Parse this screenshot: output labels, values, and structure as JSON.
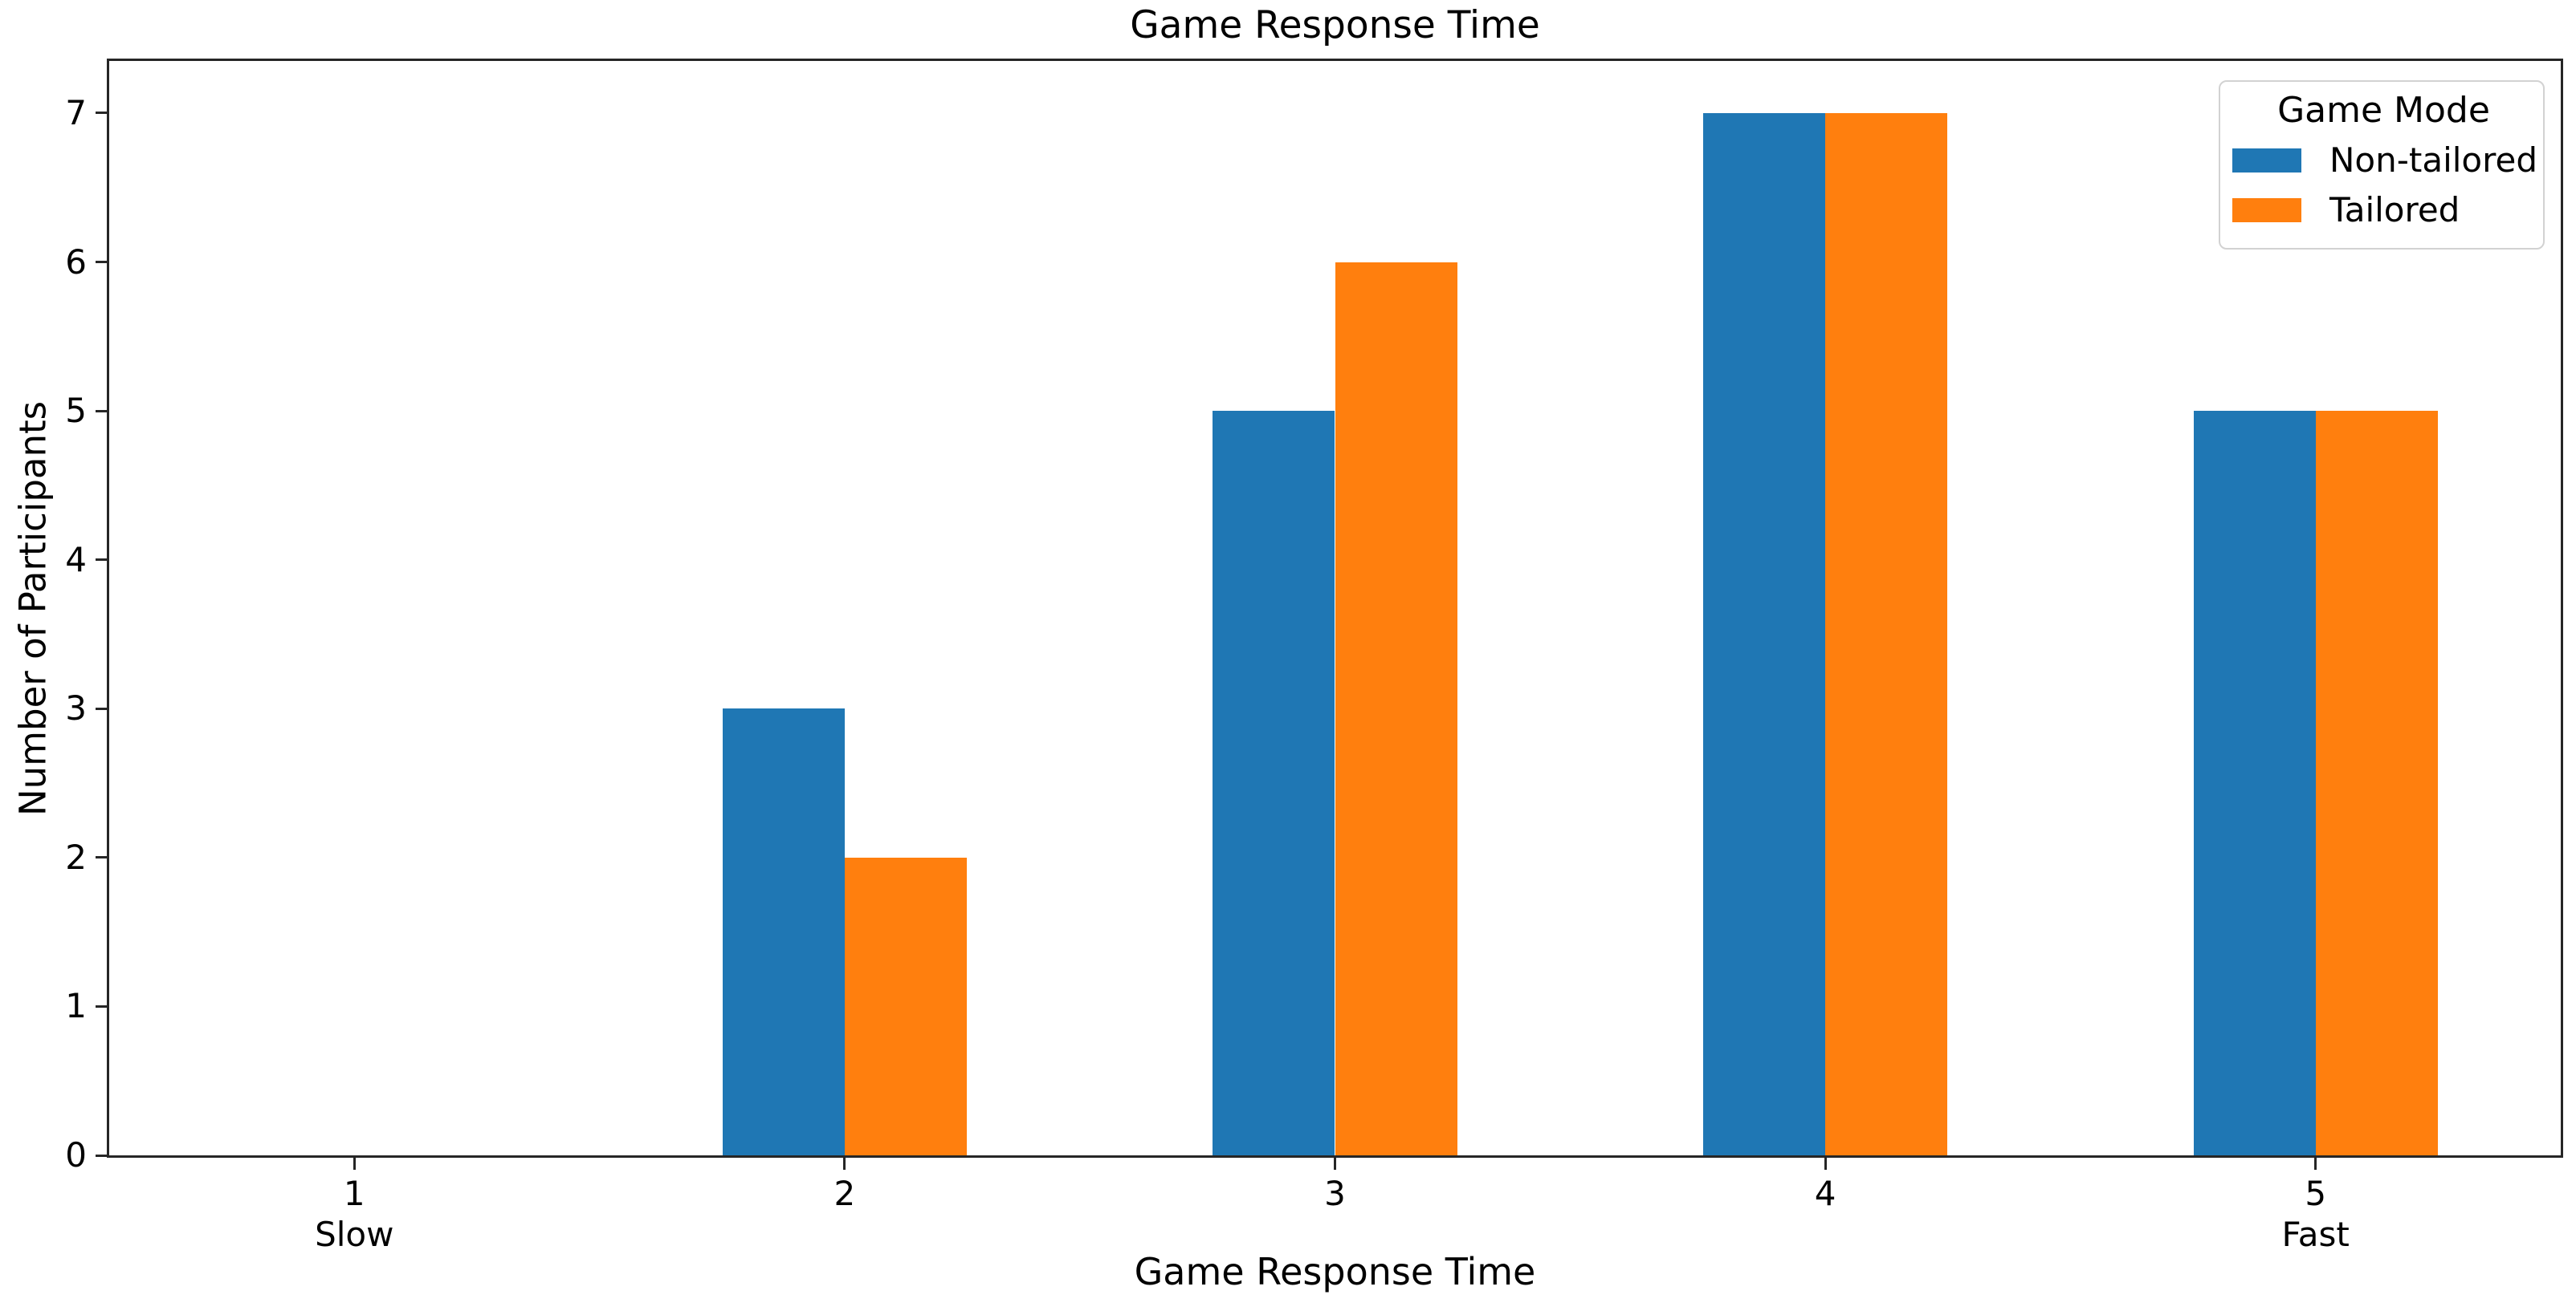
{
  "figure": {
    "title": "Game Response Time",
    "xlabel": "Game Response Time",
    "ylabel": "Number of Participants"
  },
  "legend": {
    "title": "Game Mode",
    "entries": [
      {
        "label": "Non-tailored",
        "color": "#1f77b4"
      },
      {
        "label": "Tailored",
        "color": "#ff7f0e"
      }
    ]
  },
  "chart_data": {
    "type": "bar",
    "title": "Game Response Time",
    "xlabel": "Game Response Time",
    "ylabel": "Number of Participants",
    "categories": [
      "1",
      "2",
      "3",
      "4",
      "5"
    ],
    "category_sublabels": [
      "Slow",
      "",
      "",
      "",
      "Fast"
    ],
    "series": [
      {
        "name": "Non-tailored",
        "color": "#1f77b4",
        "values": [
          0,
          3,
          5,
          7,
          5
        ]
      },
      {
        "name": "Tailored",
        "color": "#ff7f0e",
        "values": [
          0,
          2,
          6,
          7,
          5
        ]
      }
    ],
    "yticks": [
      0,
      1,
      2,
      3,
      4,
      5,
      6,
      7
    ],
    "ylim": [
      0,
      7.35
    ],
    "bar_width_pct": 4.98,
    "legend_title": "Game Mode",
    "legend_position": "upper right",
    "grid": false,
    "background": "#ffffff",
    "spine_color": "#262626"
  }
}
